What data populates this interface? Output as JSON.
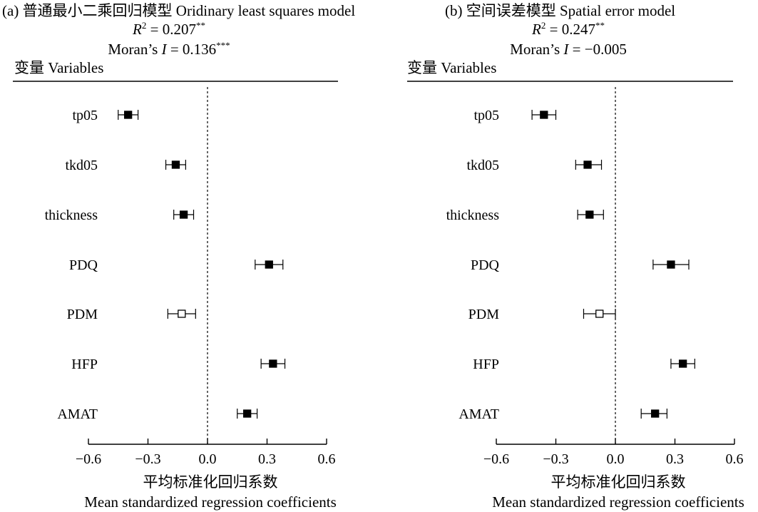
{
  "chart_data": [
    {
      "type": "scatter",
      "panel_label": "(a)",
      "title": "普通最小二乘回归模型  Oridinary least squares model",
      "stat_r2": {
        "symbol": "R",
        "sup": "2",
        "text": " = 0.207",
        "stars": "**"
      },
      "stat_moran": {
        "prefix": "Moran’s ",
        "symbol": "I",
        "text": " = 0.136",
        "stars": "***"
      },
      "variables_label": "变量 Variables",
      "xlabel_cn": "平均标准化回归系数",
      "xlabel_en": "Mean standardized regression coefficients",
      "xlim": [
        -0.6,
        0.6
      ],
      "xticks": [
        -0.6,
        -0.3,
        0.0,
        0.3,
        0.6
      ],
      "xtick_labels": [
        "−0.6",
        "−0.3",
        "0.0",
        "0.3",
        "0.6"
      ],
      "reference_line": 0,
      "points": [
        {
          "name": "tp05",
          "mean": -0.4,
          "low": -0.45,
          "high": -0.35,
          "significant": true
        },
        {
          "name": "tkd05",
          "mean": -0.16,
          "low": -0.21,
          "high": -0.11,
          "significant": true
        },
        {
          "name": "thickness",
          "mean": -0.12,
          "low": -0.17,
          "high": -0.07,
          "significant": true
        },
        {
          "name": "PDQ",
          "mean": 0.31,
          "low": 0.24,
          "high": 0.38,
          "significant": true
        },
        {
          "name": "PDM",
          "mean": -0.13,
          "low": -0.2,
          "high": -0.06,
          "significant": false
        },
        {
          "name": "HFP",
          "mean": 0.33,
          "low": 0.27,
          "high": 0.39,
          "significant": true
        },
        {
          "name": "AMAT",
          "mean": 0.2,
          "low": 0.15,
          "high": 0.25,
          "significant": true
        }
      ]
    },
    {
      "type": "scatter",
      "panel_label": "(b)",
      "title": "空间误差模型 Spatial error model",
      "stat_r2": {
        "symbol": "R",
        "sup": "2",
        "text": " = 0.247",
        "stars": "**"
      },
      "stat_moran": {
        "prefix": "Moran’s ",
        "symbol": "I",
        "text": " = −0.005",
        "stars": ""
      },
      "variables_label": "变量 Variables",
      "xlabel_cn": "平均标准化回归系数",
      "xlabel_en": "Mean standardized regression coefficients",
      "xlim": [
        -0.6,
        0.6
      ],
      "xticks": [
        -0.6,
        -0.3,
        0.0,
        0.3,
        0.6
      ],
      "xtick_labels": [
        "−0.6",
        "−0.3",
        "0.0",
        "0.3",
        "0.6"
      ],
      "reference_line": 0,
      "points": [
        {
          "name": "tp05",
          "mean": -0.36,
          "low": -0.42,
          "high": -0.3,
          "significant": true
        },
        {
          "name": "tkd05",
          "mean": -0.14,
          "low": -0.2,
          "high": -0.07,
          "significant": true
        },
        {
          "name": "thickness",
          "mean": -0.13,
          "low": -0.19,
          "high": -0.06,
          "significant": true
        },
        {
          "name": "PDQ",
          "mean": 0.28,
          "low": 0.19,
          "high": 0.37,
          "significant": true
        },
        {
          "name": "PDM",
          "mean": -0.08,
          "low": -0.16,
          "high": 0.0,
          "significant": false
        },
        {
          "name": "HFP",
          "mean": 0.34,
          "low": 0.28,
          "high": 0.4,
          "significant": true
        },
        {
          "name": "AMAT",
          "mean": 0.2,
          "low": 0.13,
          "high": 0.26,
          "significant": true
        }
      ]
    }
  ]
}
